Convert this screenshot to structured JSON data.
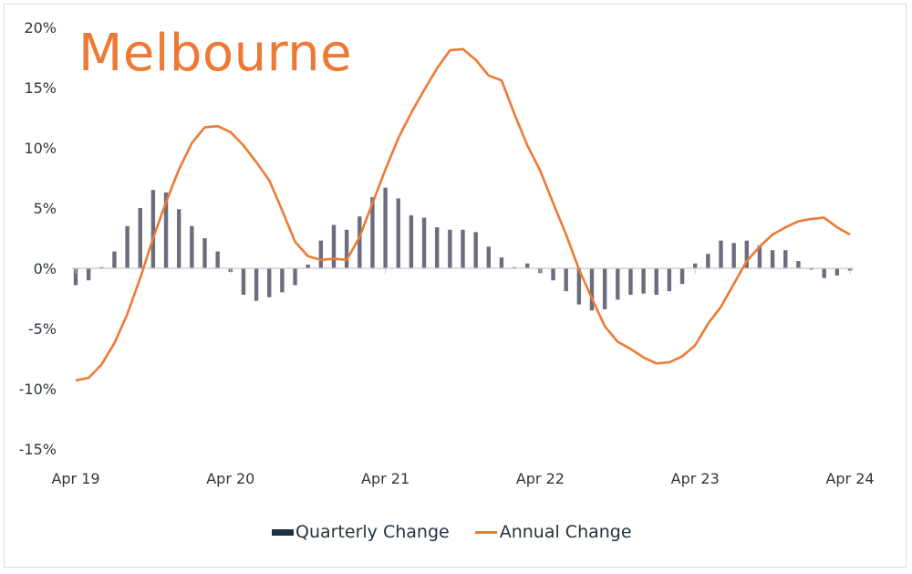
{
  "chart_data": {
    "type": "bar+line",
    "title": "Melbourne",
    "xlabel": "",
    "ylabel": "",
    "ylim": [
      -15,
      20
    ],
    "yticks": [
      "20%",
      "15%",
      "10%",
      "5%",
      "0%",
      "-5%",
      "-10%",
      "-15%"
    ],
    "ytick_values": [
      20,
      15,
      10,
      5,
      0,
      -5,
      -10,
      -15
    ],
    "xtick_labels": [
      "Apr 19",
      "Apr 20",
      "Apr 21",
      "Apr 22",
      "Apr 23",
      "Apr 24"
    ],
    "xtick_indices": [
      0,
      12,
      24,
      36,
      48,
      60
    ],
    "grid": false,
    "legend_position": "bottom",
    "x_frequency": "monthly (Apr 2019 - Apr 2024)",
    "series": [
      {
        "name": "Quarterly Change",
        "type": "bar",
        "color": "#6c6c7e",
        "values": [
          -1.4,
          -1.0,
          0.1,
          1.4,
          3.5,
          5.0,
          6.5,
          6.3,
          4.9,
          3.5,
          2.5,
          1.4,
          -0.3,
          -2.2,
          -2.7,
          -2.4,
          -2.0,
          -1.4,
          0.3,
          2.3,
          3.6,
          3.2,
          4.3,
          5.9,
          6.7,
          5.8,
          4.4,
          4.2,
          3.4,
          3.2,
          3.2,
          3.0,
          1.8,
          0.9,
          0.1,
          0.4,
          -0.4,
          -1.0,
          -1.9,
          -3.0,
          -3.5,
          -3.4,
          -2.6,
          -2.2,
          -2.1,
          -2.2,
          -1.9,
          -1.3,
          0.4,
          1.2,
          2.3,
          2.1,
          2.3,
          1.9,
          1.5,
          1.5,
          0.6,
          -0.1,
          -0.8,
          -0.6,
          -0.2
        ]
      },
      {
        "name": "Annual Change",
        "type": "line",
        "color": "#ec7a34",
        "values": [
          -9.3,
          -9.1,
          -8.0,
          -6.2,
          -3.8,
          -0.8,
          2.5,
          5.5,
          8.2,
          10.4,
          11.7,
          11.8,
          11.3,
          10.2,
          8.8,
          7.3,
          4.8,
          2.2,
          1.0,
          0.7,
          0.8,
          0.7,
          2.6,
          5.4,
          8.2,
          10.8,
          12.9,
          14.8,
          16.6,
          18.1,
          18.2,
          17.3,
          16.0,
          15.6,
          12.8,
          10.2,
          8.1,
          5.4,
          2.8,
          -0.1,
          -2.5,
          -4.8,
          -6.1,
          -6.7,
          -7.4,
          -7.9,
          -7.8,
          -7.3,
          -6.4,
          -4.6,
          -3.2,
          -1.3,
          0.6,
          1.8,
          2.8,
          3.4,
          3.9,
          4.1,
          4.2,
          3.4,
          2.8
        ]
      }
    ]
  },
  "legend": {
    "quarterly_label": "Quarterly Change",
    "annual_label": "Annual Change"
  },
  "colors": {
    "accent": "#ec7a34",
    "bar": "#6c6c7e",
    "legend_bar": "#1e2f3f",
    "axis": "#c8c8d0",
    "text": "#2e3440"
  }
}
